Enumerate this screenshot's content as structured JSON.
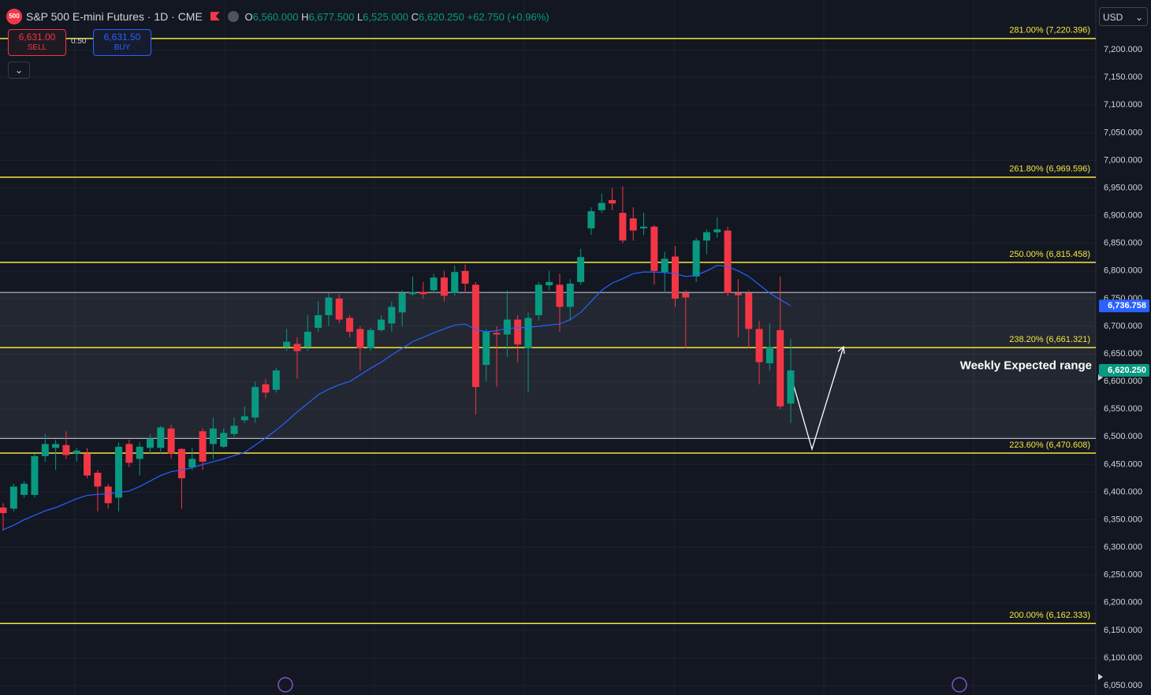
{
  "header": {
    "icon": "500",
    "title": "S&P 500 E-mini Futures · 1D · CME",
    "o_label": "O",
    "open": "6,560.000",
    "h_label": "H",
    "high": "6,677.500",
    "l_label": "L",
    "low": "6,525.000",
    "c_label": "C",
    "close": "6,620.250",
    "change": "+62.750 (+0.96%)",
    "sell_price": "6,631.00",
    "sell": "SELL",
    "spread": "0.50",
    "buy_price": "6,631.50",
    "buy": "BUY",
    "currency": "USD"
  },
  "chart_data": {
    "type": "candlestick",
    "categories": [
      null,
      null,
      null,
      null,
      null,
      null,
      null,
      null,
      null,
      null,
      null,
      null,
      null,
      null,
      null,
      null,
      null,
      null,
      null,
      null,
      null,
      null,
      null,
      null,
      null,
      null,
      null,
      null,
      null,
      null,
      null,
      null,
      null,
      null,
      null,
      null,
      null,
      null,
      null,
      null,
      null,
      null,
      null,
      null,
      null,
      null,
      null,
      null,
      null,
      null,
      null,
      null,
      null,
      null,
      null,
      null,
      null,
      null,
      null,
      null,
      null,
      null,
      null,
      null,
      null,
      null,
      null,
      null,
      null,
      null,
      null,
      null,
      null,
      null,
      null,
      null
    ],
    "open": [
      6372,
      6370,
      6395,
      6395,
      6465,
      6480,
      6485,
      6470,
      6470,
      6435,
      6410,
      6390,
      6487,
      6460,
      6480,
      6480,
      6515,
      6478,
      6445,
      6510,
      6487,
      6482,
      6505,
      6530,
      6535,
      6595,
      6585,
      6663,
      6668,
      6662,
      6697,
      6720,
      6750,
      6715,
      6695,
      6660,
      6693,
      6705,
      6725,
      6758,
      6762,
      6765,
      6788,
      6760,
      6800,
      6775,
      6630,
      6688,
      6685,
      6712,
      6660,
      6720,
      6774,
      6775,
      6735,
      6780,
      6877,
      6910,
      6928,
      6905,
      6895,
      6877,
      6880,
      6798,
      6826,
      6760,
      6790,
      6855,
      6870,
      6873,
      6760,
      6760,
      6695,
      6633,
      6693,
      6560
    ],
    "high": [
      6380,
      6415,
      6420,
      6470,
      6505,
      6495,
      6510,
      6480,
      6480,
      6440,
      6415,
      6490,
      6495,
      6490,
      6505,
      6520,
      6522,
      6480,
      6480,
      6515,
      6535,
      6515,
      6535,
      6555,
      6600,
      6605,
      6625,
      6695,
      6680,
      6720,
      6745,
      6760,
      6758,
      6720,
      6700,
      6697,
      6720,
      6745,
      6765,
      6790,
      6780,
      6795,
      6800,
      6810,
      6812,
      6780,
      6695,
      6700,
      6765,
      6720,
      6725,
      6780,
      6800,
      6795,
      6785,
      6840,
      6915,
      6940,
      6950,
      6953,
      6915,
      6905,
      6883,
      6835,
      6845,
      6765,
      6860,
      6875,
      6897,
      6880,
      6785,
      6765,
      6710,
      6705,
      6790,
      6677
    ],
    "low": [
      6330,
      6365,
      6390,
      6390,
      6455,
      6440,
      6460,
      6455,
      6425,
      6365,
      6370,
      6365,
      6445,
      6430,
      6470,
      6470,
      6460,
      6370,
      6440,
      6440,
      6460,
      6480,
      6500,
      6525,
      6525,
      6570,
      6580,
      6655,
      6605,
      6655,
      6690,
      6700,
      6705,
      6680,
      6620,
      6655,
      6690,
      6690,
      6700,
      6755,
      6750,
      6760,
      6745,
      6755,
      6760,
      6540,
      6600,
      6590,
      6645,
      6635,
      6580,
      6710,
      6765,
      6690,
      6710,
      6775,
      6865,
      6905,
      6910,
      6850,
      6855,
      6865,
      6775,
      6760,
      6735,
      6660,
      6780,
      6830,
      6860,
      6755,
      6680,
      6660,
      6595,
      6620,
      6550,
      6525
    ],
    "close": [
      6362,
      6410,
      6415,
      6465,
      6487,
      6487,
      6467,
      6475,
      6430,
      6410,
      6380,
      6482,
      6453,
      6482,
      6497,
      6517,
      6470,
      6425,
      6460,
      6455,
      6515,
      6507,
      6520,
      6537,
      6590,
      6580,
      6620,
      6672,
      6655,
      6690,
      6720,
      6752,
      6712,
      6690,
      6660,
      6693,
      6712,
      6735,
      6760,
      6762,
      6758,
      6788,
      6755,
      6798,
      6777,
      6590,
      6690,
      6685,
      6712,
      6667,
      6715,
      6775,
      6780,
      6735,
      6777,
      6825,
      6908,
      6923,
      6922,
      6855,
      6873,
      6880,
      6800,
      6822,
      6750,
      6752,
      6855,
      6870,
      6875,
      6760,
      6756,
      6695,
      6635,
      6662,
      6555,
      6620
    ],
    "up_color": "#089981",
    "down_color": "#f23645",
    "ma": {
      "color": "#2962ff",
      "values": [
        6332,
        6340,
        6350,
        6358,
        6366,
        6372,
        6380,
        6388,
        6394,
        6396,
        6397,
        6399,
        6402,
        6410,
        6420,
        6430,
        6437,
        6440,
        6444,
        6450,
        6455,
        6460,
        6466,
        6472,
        6485,
        6498,
        6512,
        6528,
        6545,
        6560,
        6576,
        6586,
        6594,
        6600,
        6612,
        6624,
        6635,
        6648,
        6660,
        6672,
        6680,
        6688,
        6695,
        6702,
        6704,
        6694,
        6690,
        6692,
        6696,
        6697,
        6698,
        6700,
        6702,
        6704,
        6712,
        6725,
        6745,
        6765,
        6778,
        6786,
        6795,
        6798,
        6798,
        6797,
        6795,
        6790,
        6792,
        6800,
        6810,
        6808,
        6800,
        6790,
        6775,
        6760,
        6748,
        6737
      ]
    },
    "ylim": [
      6033,
      7290
    ],
    "yticks": [
      {
        "value": 6050,
        "label": "6,050.000"
      },
      {
        "value": 6100,
        "label": "6,100.000"
      },
      {
        "value": 6150,
        "label": "6,150.000"
      },
      {
        "value": 6200,
        "label": "6,200.000"
      },
      {
        "value": 6250,
        "label": "6,250.000"
      },
      {
        "value": 6300,
        "label": "6,300.000"
      },
      {
        "value": 6350,
        "label": "6,350.000"
      },
      {
        "value": 6400,
        "label": "6,400.000"
      },
      {
        "value": 6450,
        "label": "6,450.000"
      },
      {
        "value": 6500,
        "label": "6,500.000"
      },
      {
        "value": 6550,
        "label": "6,550.000"
      },
      {
        "value": 6600,
        "label": "6,600.000"
      },
      {
        "value": 6650,
        "label": "6,650.000"
      },
      {
        "value": 6700,
        "label": "6,700.000"
      },
      {
        "value": 6750,
        "label": "6,750.000"
      },
      {
        "value": 6800,
        "label": "6,800.000"
      },
      {
        "value": 6850,
        "label": "6,850.000"
      },
      {
        "value": 6900,
        "label": "6,900.000"
      },
      {
        "value": 6950,
        "label": "6,950.000"
      },
      {
        "value": 7000,
        "label": "7,000.000"
      },
      {
        "value": 7050,
        "label": "7,050.000"
      },
      {
        "value": 7100,
        "label": "7,100.000"
      },
      {
        "value": 7150,
        "label": "7,150.000"
      },
      {
        "value": 7200,
        "label": "7,200.000"
      }
    ],
    "grid": true,
    "fib_color": "#f5e73c",
    "fib_levels": [
      {
        "value": 7220.396,
        "label": "281.00% (7,220.396)"
      },
      {
        "value": 6969.596,
        "label": "261.80% (6,969.596)"
      },
      {
        "value": 6815.458,
        "label": "250.00% (6,815.458)"
      },
      {
        "value": 6661.321,
        "label": "238.20% (6,661.321)"
      },
      {
        "value": 6470.608,
        "label": "223.60% (6,470.608)"
      },
      {
        "value": 6162.333,
        "label": "200.00% (6,162.333)"
      }
    ],
    "range": {
      "values": [
        6761,
        6497
      ],
      "color": "#d1d4dc",
      "annotation": "Weekly Expected range"
    },
    "price_tags": [
      {
        "value": 6736.758,
        "label": "6,736.758",
        "color": "#2962ff"
      },
      {
        "value": 6620.25,
        "label": "6,620.250",
        "color": "#089981"
      }
    ]
  }
}
